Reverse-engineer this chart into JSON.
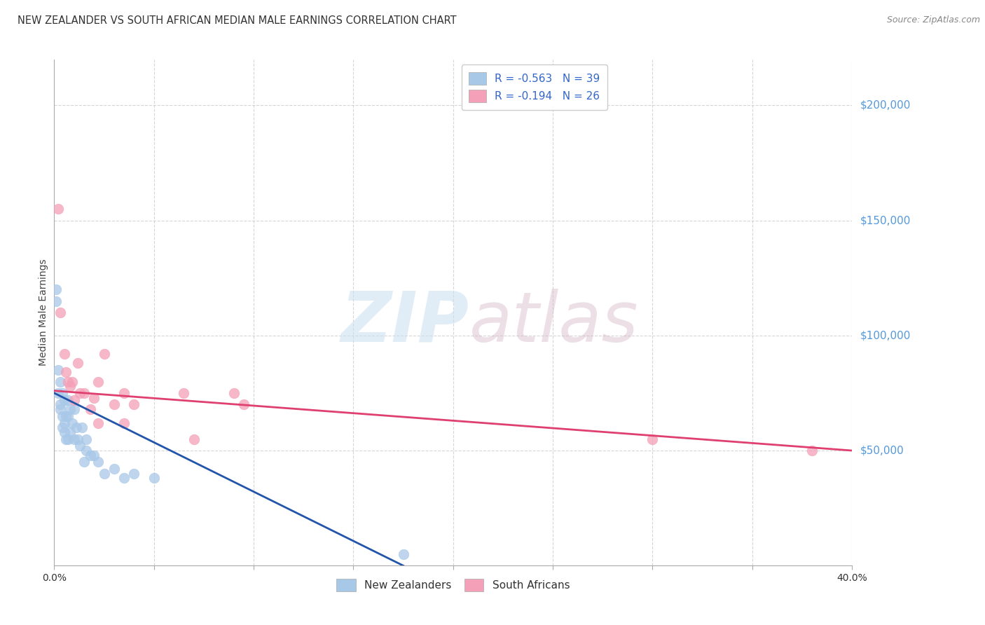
{
  "title": "NEW ZEALANDER VS SOUTH AFRICAN MEDIAN MALE EARNINGS CORRELATION CHART",
  "source": "Source: ZipAtlas.com",
  "ylabel": "Median Male Earnings",
  "watermark": "ZIPatlas",
  "xlim": [
    0.0,
    0.4
  ],
  "ylim": [
    0,
    220000
  ],
  "xticks": [
    0.0,
    0.05,
    0.1,
    0.15,
    0.2,
    0.25,
    0.3,
    0.35,
    0.4
  ],
  "xticklabels_show": [
    "0.0%",
    "",
    "",
    "",
    "",
    "",
    "",
    "",
    "40.0%"
  ],
  "yticks_right": [
    50000,
    100000,
    150000,
    200000
  ],
  "ytick_labels_right": [
    "$50,000",
    "$100,000",
    "$150,000",
    "$200,000"
  ],
  "nz_color": "#a8c8e8",
  "sa_color": "#f4a0b8",
  "nz_trend_color": "#2255aa",
  "sa_trend_color": "#e04070",
  "nz_R": -0.563,
  "nz_N": 39,
  "sa_R": -0.194,
  "sa_N": 26,
  "legend_nz": "New Zealanders",
  "legend_sa": "South Africans",
  "background_color": "#ffffff",
  "grid_color": "#cccccc",
  "nz_x": [
    0.001,
    0.001,
    0.002,
    0.002,
    0.003,
    0.003,
    0.003,
    0.004,
    0.004,
    0.004,
    0.005,
    0.005,
    0.005,
    0.006,
    0.006,
    0.007,
    0.007,
    0.007,
    0.008,
    0.008,
    0.009,
    0.01,
    0.01,
    0.011,
    0.012,
    0.013,
    0.014,
    0.015,
    0.016,
    0.016,
    0.018,
    0.02,
    0.022,
    0.025,
    0.03,
    0.035,
    0.04,
    0.05,
    0.175
  ],
  "nz_y": [
    120000,
    115000,
    85000,
    75000,
    80000,
    70000,
    68000,
    75000,
    65000,
    60000,
    72000,
    62000,
    58000,
    65000,
    55000,
    72000,
    65000,
    55000,
    68000,
    58000,
    62000,
    68000,
    55000,
    60000,
    55000,
    52000,
    60000,
    45000,
    55000,
    50000,
    48000,
    48000,
    45000,
    40000,
    42000,
    38000,
    40000,
    38000,
    5000
  ],
  "sa_x": [
    0.002,
    0.003,
    0.005,
    0.006,
    0.007,
    0.008,
    0.009,
    0.01,
    0.012,
    0.013,
    0.015,
    0.018,
    0.02,
    0.022,
    0.022,
    0.025,
    0.03,
    0.035,
    0.035,
    0.04,
    0.065,
    0.07,
    0.09,
    0.095,
    0.3,
    0.38
  ],
  "sa_y": [
    155000,
    110000,
    92000,
    84000,
    80000,
    78000,
    80000,
    72000,
    88000,
    75000,
    75000,
    68000,
    73000,
    80000,
    62000,
    92000,
    70000,
    75000,
    62000,
    70000,
    75000,
    55000,
    75000,
    70000,
    55000,
    50000
  ],
  "nz_trend_x0": 0.0,
  "nz_trend_y0": 75000,
  "nz_trend_x1": 0.175,
  "nz_trend_y1": 0,
  "sa_trend_x0": 0.0,
  "sa_trend_y0": 76000,
  "sa_trend_x1": 0.4,
  "sa_trend_y1": 50000,
  "marker_size": 110,
  "title_fontsize": 10.5,
  "axis_fontsize": 10,
  "legend_fontsize": 11,
  "right_label_color": "#5599dd",
  "legend_text_color": "#3366cc",
  "source_color": "#888888"
}
